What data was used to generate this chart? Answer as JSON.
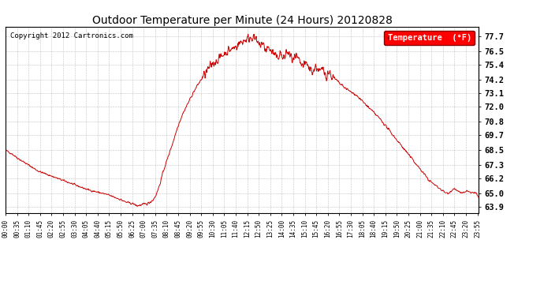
{
  "title": "Outdoor Temperature per Minute (24 Hours) 20120828",
  "copyright": "Copyright 2012 Cartronics.com",
  "legend_label": "Temperature  (°F)",
  "line_color": "#cc0000",
  "background_color": "#ffffff",
  "grid_color": "#999999",
  "yticks": [
    63.9,
    65.0,
    66.2,
    67.3,
    68.5,
    69.7,
    70.8,
    72.0,
    73.1,
    74.2,
    75.4,
    76.5,
    77.7
  ],
  "ylim": [
    63.4,
    78.5
  ],
  "total_minutes": 1440,
  "xtick_interval": 35,
  "xlabel_rotation": 90,
  "figsize": [
    6.9,
    3.75
  ],
  "dpi": 100
}
